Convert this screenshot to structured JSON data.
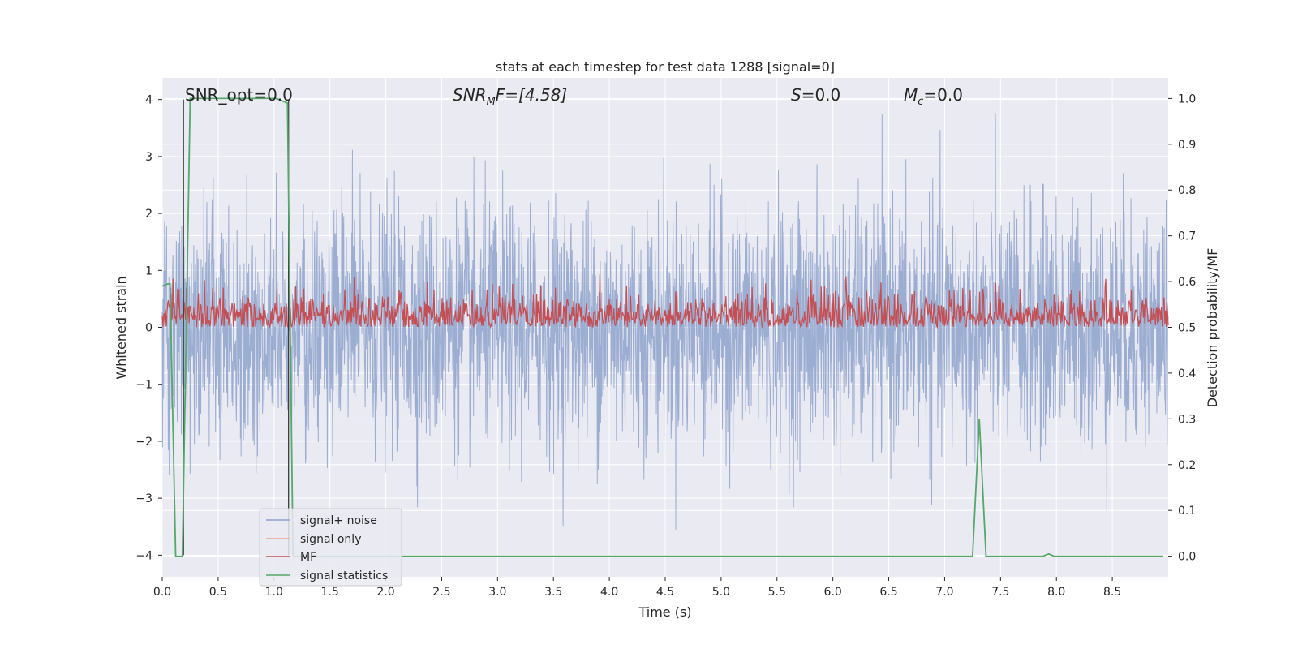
{
  "chart_data": {
    "type": "line",
    "title": "stats at each timestep for test data 1288 [signal=0]",
    "xlabel": "Time (s)",
    "ylabel_left": "Whitened strain",
    "ylabel_right": "Detection probability/MF",
    "xlim": [
      0.0,
      9.0
    ],
    "ylim_left": [
      -4.38,
      4.38
    ],
    "ylim_right": [
      -0.045,
      1.045
    ],
    "x_ticks": [
      "0.0",
      "0.5",
      "1.0",
      "1.5",
      "2.0",
      "2.5",
      "3.0",
      "3.5",
      "4.0",
      "4.5",
      "5.0",
      "5.5",
      "6.0",
      "6.5",
      "7.0",
      "7.5",
      "8.0",
      "8.5"
    ],
    "y_left_ticks": [
      "−4",
      "−3",
      "−2",
      "−1",
      "0",
      "1",
      "2",
      "3",
      "4"
    ],
    "y_right_ticks": [
      "0.0",
      "0.1",
      "0.2",
      "0.3",
      "0.4",
      "0.5",
      "0.6",
      "0.7",
      "0.8",
      "0.9",
      "1.0"
    ],
    "grid": true,
    "legend_position": "lower-left",
    "annotations": {
      "snr_opt": "SNR_opt=0.0",
      "snr_mf": "SNR",
      "snr_mf_sub": "M",
      "snr_mf_rest": "F=[4.58]",
      "s": "S",
      "s_rest": "=0.0",
      "mc": "M",
      "mc_sub": "c",
      "mc_rest": "=0.0"
    },
    "series": [
      {
        "name": "signal+ noise",
        "axis": "left",
        "color": "#8ea2cc",
        "description_values": {
          "amplitude_range": [
            -4.0,
            4.0
          ]
        }
      },
      {
        "name": "signal only",
        "axis": "left",
        "color": "#e9a68b",
        "values": []
      },
      {
        "name": "MF",
        "axis": "right",
        "color": "#c44e52",
        "range": [
          0.5,
          0.63
        ]
      },
      {
        "name": "signal statistics",
        "axis": "right",
        "color": "#55a868",
        "points": [
          [
            0.0,
            0.59
          ],
          [
            0.05,
            0.595
          ],
          [
            0.07,
            0.595
          ],
          [
            0.12,
            0.0
          ],
          [
            0.18,
            0.0
          ],
          [
            0.25,
            1.0
          ],
          [
            1.02,
            1.0
          ],
          [
            1.12,
            0.99
          ],
          [
            1.17,
            0.0
          ],
          [
            7.25,
            0.0
          ],
          [
            7.31,
            0.3
          ],
          [
            7.37,
            0.0
          ],
          [
            7.88,
            0.0
          ],
          [
            7.93,
            0.005
          ],
          [
            7.98,
            0.0
          ],
          [
            8.95,
            0.0
          ]
        ]
      }
    ],
    "vertical_lines_x": [
      0.19,
      1.13
    ]
  },
  "colors": {
    "plot_bg": "#eaeaf2",
    "grid": "#ffffff",
    "text": "#262626"
  }
}
